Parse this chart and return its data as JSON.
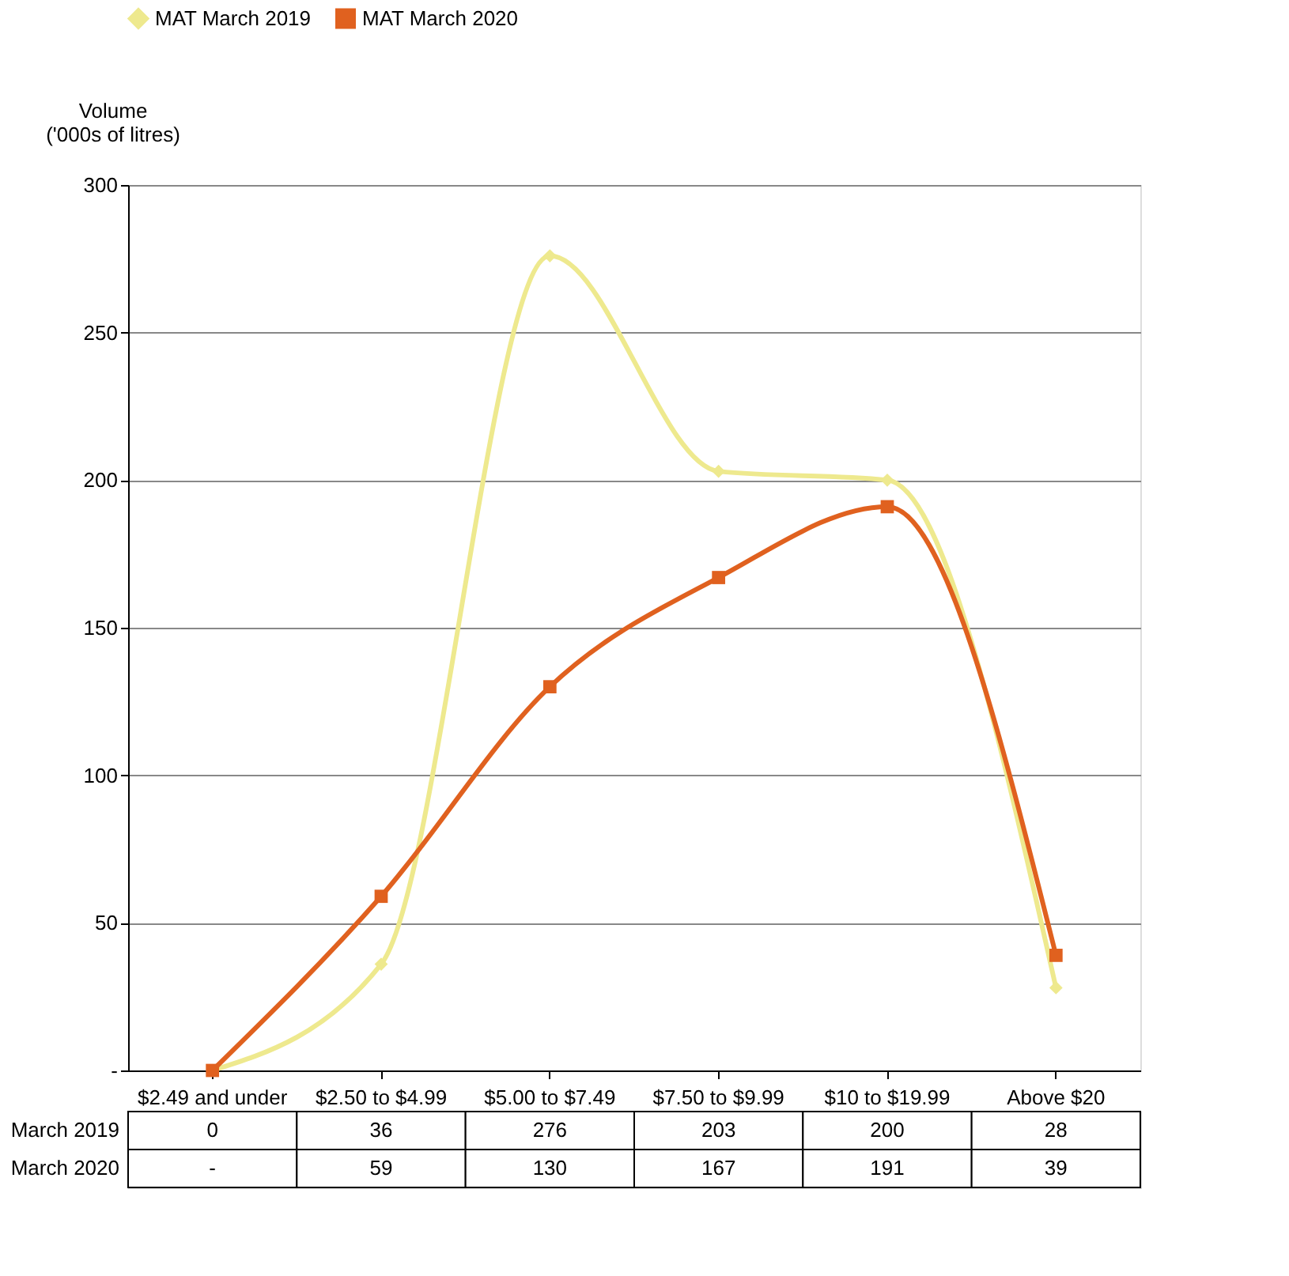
{
  "chart_data": {
    "type": "line",
    "ylabel": "Volume ('000s of litres)",
    "categories": [
      "$2.49 and under",
      "$2.50 to $4.99",
      "$5.00 to $7.49",
      "$7.50 to $9.99",
      "$10 to $19.99",
      "Above $20"
    ],
    "series": [
      {
        "name": "MAT March 2019",
        "color": "#eee98e",
        "marker": "diamond",
        "values": [
          0,
          36,
          276,
          203,
          200,
          28
        ],
        "value_labels": [
          "0",
          "36",
          "276",
          "203",
          "200",
          "28"
        ]
      },
      {
        "name": "MAT March 2020",
        "color": "#e0611f",
        "marker": "square",
        "values": [
          0,
          59,
          130,
          167,
          191,
          39
        ],
        "value_labels": [
          "-",
          "59",
          "130",
          "167",
          "191",
          "39"
        ]
      }
    ],
    "annotations": [
      "March 2019",
      "March 2020"
    ],
    "ylim": [
      0,
      300
    ],
    "yticks": [
      {
        "value": 0,
        "label": "-"
      },
      50,
      100,
      150,
      200,
      250,
      300
    ],
    "grid": "y",
    "legend": "top",
    "line_style": "solid"
  }
}
